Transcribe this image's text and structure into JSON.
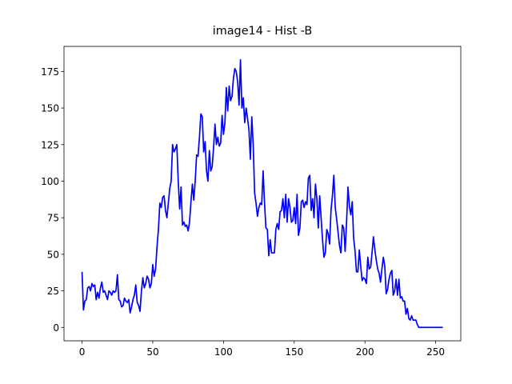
{
  "chart_data": {
    "type": "line",
    "title": "image14 - Hist -B",
    "x": [
      0,
      1,
      2,
      3,
      4,
      5,
      6,
      7,
      8,
      9,
      10,
      11,
      12,
      13,
      14,
      15,
      16,
      17,
      18,
      19,
      20,
      21,
      22,
      23,
      24,
      25,
      26,
      27,
      28,
      29,
      30,
      31,
      32,
      33,
      34,
      35,
      36,
      37,
      38,
      39,
      40,
      41,
      42,
      43,
      44,
      45,
      46,
      47,
      48,
      49,
      50,
      51,
      52,
      53,
      54,
      55,
      56,
      57,
      58,
      59,
      60,
      61,
      62,
      63,
      64,
      65,
      66,
      67,
      68,
      69,
      70,
      71,
      72,
      73,
      74,
      75,
      76,
      77,
      78,
      79,
      80,
      81,
      82,
      83,
      84,
      85,
      86,
      87,
      88,
      89,
      90,
      91,
      92,
      93,
      94,
      95,
      96,
      97,
      98,
      99,
      100,
      101,
      102,
      103,
      104,
      105,
      106,
      107,
      108,
      109,
      110,
      111,
      112,
      113,
      114,
      115,
      116,
      117,
      118,
      119,
      120,
      121,
      122,
      123,
      124,
      125,
      126,
      127,
      128,
      129,
      130,
      131,
      132,
      133,
      134,
      135,
      136,
      137,
      138,
      139,
      140,
      141,
      142,
      143,
      144,
      145,
      146,
      147,
      148,
      149,
      150,
      151,
      152,
      153,
      154,
      155,
      156,
      157,
      158,
      159,
      160,
      161,
      162,
      163,
      164,
      165,
      166,
      167,
      168,
      169,
      170,
      171,
      172,
      173,
      174,
      175,
      176,
      177,
      178,
      179,
      180,
      181,
      182,
      183,
      184,
      185,
      186,
      187,
      188,
      189,
      190,
      191,
      192,
      193,
      194,
      195,
      196,
      197,
      198,
      199,
      200,
      201,
      202,
      203,
      204,
      205,
      206,
      207,
      208,
      209,
      210,
      211,
      212,
      213,
      214,
      215,
      216,
      217,
      218,
      219,
      220,
      221,
      222,
      223,
      224,
      225,
      226,
      227,
      228,
      229,
      230,
      231,
      232,
      233,
      234,
      235,
      236,
      237,
      238,
      239,
      240,
      241,
      242,
      243,
      244,
      245,
      246,
      247,
      248,
      249,
      250,
      251,
      252,
      253,
      254,
      255
    ],
    "series": [
      {
        "name": "B",
        "color": "#0000ff",
        "values": [
          38,
          12,
          18,
          19,
          27,
          28,
          25,
          30,
          28,
          29,
          19,
          24,
          20,
          27,
          31,
          24,
          25,
          22,
          19,
          25,
          24,
          22,
          25,
          24,
          25,
          36,
          19,
          18,
          14,
          15,
          20,
          18,
          17,
          19,
          10,
          14,
          19,
          22,
          29,
          17,
          15,
          11,
          25,
          34,
          27,
          30,
          35,
          33,
          27,
          30,
          43,
          35,
          40,
          55,
          67,
          85,
          82,
          89,
          90,
          80,
          75,
          85,
          95,
          100,
          125,
          120,
          122,
          125,
          100,
          81,
          96,
          70,
          72,
          69,
          70,
          66,
          72,
          86,
          98,
          87,
          100,
          118,
          117,
          130,
          146,
          144,
          120,
          127,
          107,
          100,
          121,
          107,
          110,
          123,
          139,
          125,
          130,
          124,
          126,
          145,
          132,
          140,
          164,
          148,
          165,
          155,
          158,
          170,
          177,
          175,
          168,
          152,
          183,
          150,
          157,
          140,
          150,
          143,
          135,
          115,
          144,
          125,
          92,
          85,
          76,
          82,
          85,
          84,
          107,
          85,
          68,
          67,
          49,
          60,
          51,
          51,
          51,
          67,
          71,
          67,
          79,
          80,
          88,
          75,
          91,
          72,
          88,
          82,
          72,
          73,
          82,
          71,
          91,
          63,
          68,
          86,
          87,
          82,
          86,
          84,
          102,
          104,
          80,
          88,
          75,
          98,
          88,
          68,
          90,
          75,
          60,
          48,
          51,
          67,
          64,
          57,
          80,
          90,
          104,
          82,
          74,
          65,
          56,
          51,
          70,
          68,
          52,
          72,
          96,
          83,
          77,
          86,
          61,
          52,
          38,
          38,
          53,
          42,
          32,
          34,
          33,
          30,
          48,
          40,
          41,
          51,
          62,
          53,
          46,
          40,
          37,
          31,
          40,
          48,
          42,
          23,
          26,
          33,
          37,
          39,
          22,
          25,
          33,
          22,
          33,
          20,
          21,
          18,
          18,
          9,
          13,
          6,
          5,
          8,
          5,
          5,
          5,
          2,
          0,
          0,
          0,
          0,
          0,
          0,
          0,
          0,
          0,
          0,
          0,
          0,
          0,
          0,
          0,
          0,
          0,
          0
        ]
      }
    ],
    "xlim": [
      -12.75,
      267.75
    ],
    "xticks": [
      0,
      50,
      100,
      150,
      200,
      250
    ],
    "ylim": [
      -9.15,
      192.15
    ],
    "yticks": [
      0,
      25,
      50,
      75,
      100,
      125,
      150,
      175
    ]
  }
}
